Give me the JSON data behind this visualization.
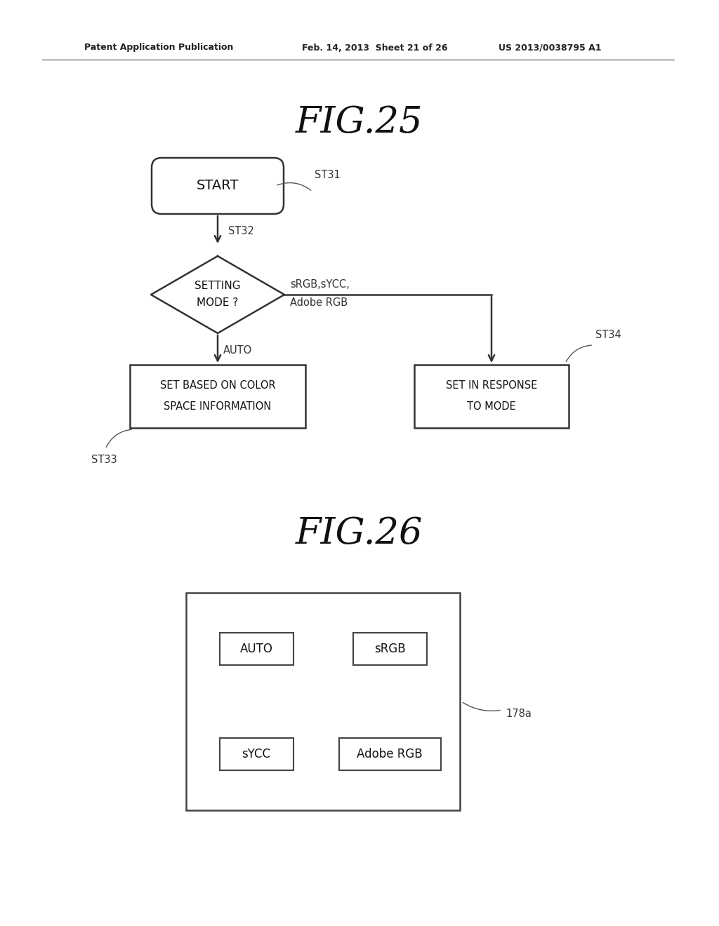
{
  "bg_color": "#ffffff",
  "header_left": "Patent Application Publication",
  "header_mid": "Feb. 14, 2013  Sheet 21 of 26",
  "header_right": "US 2013/0038795 A1",
  "fig25_title": "FIG.25",
  "fig26_title": "FIG.26",
  "fig25": {
    "start_label": "START",
    "start_tag": "ST31",
    "diamond_label_1": "SETTING",
    "diamond_label_2": "MODE ?",
    "diamond_tag": "ST32",
    "left_box_label_1": "SET BASED ON COLOR",
    "left_box_label_2": "SPACE INFORMATION",
    "left_box_tag": "ST33",
    "right_box_label_1": "SET IN RESPONSE",
    "right_box_label_2": "TO MODE",
    "right_box_tag": "ST34",
    "auto_label": "AUTO",
    "right_label_1": "sRGB,sYCC,",
    "right_label_2": "Adobe RGB"
  },
  "fig26": {
    "outer_box_label": "178a",
    "btn1": "AUTO",
    "btn2": "sRGB",
    "btn3": "sYCC",
    "btn4": "Adobe RGB"
  }
}
